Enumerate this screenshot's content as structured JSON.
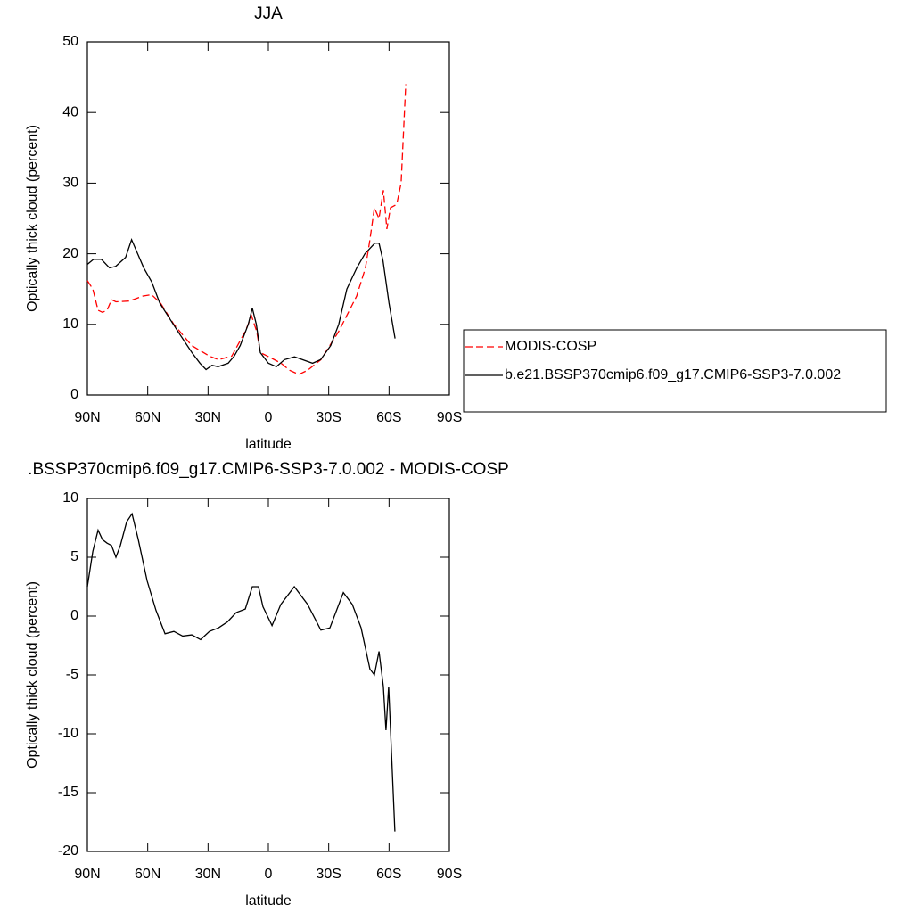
{
  "chart_data": [
    {
      "type": "line",
      "title": "JJA",
      "xlabel": "latitude",
      "ylabel": "Optically thick cloud (percent)",
      "xlim": [
        90,
        -90
      ],
      "ylim": [
        0,
        50
      ],
      "xticks": [
        {
          "value": 90,
          "label": "90N"
        },
        {
          "value": 60,
          "label": "60N"
        },
        {
          "value": 30,
          "label": "30N"
        },
        {
          "value": 0,
          "label": "0"
        },
        {
          "value": -30,
          "label": "30S"
        },
        {
          "value": -60,
          "label": "60S"
        },
        {
          "value": -90,
          "label": "90S"
        }
      ],
      "yticks": [
        0,
        10,
        20,
        30,
        40,
        50
      ],
      "legend": "right",
      "series": [
        {
          "name": "MODIS-COSP",
          "color": "#ff0000",
          "dashed": true,
          "x": [
            90,
            87.3,
            84.7,
            82.5,
            80.2,
            78,
            75.8,
            69.2,
            62.5,
            58.1,
            53.6,
            47,
            38.1,
            29.3,
            24.8,
            18.2,
            11.5,
            8.4,
            5.8,
            4,
            0.4,
            -6.3,
            -10.6,
            -15.1,
            -19.5,
            -26.1,
            -35,
            -43.9,
            -48.3,
            -50.5,
            -52.7,
            -55,
            -57.2,
            -58.9,
            -60.7,
            -63.8,
            -66,
            -68.3
          ],
          "values": [
            16.2,
            15,
            12,
            11.7,
            12,
            13.5,
            13.2,
            13.3,
            14,
            14.2,
            13,
            10,
            7,
            5.5,
            5,
            5.5,
            9,
            11.2,
            9,
            6,
            5.5,
            4.5,
            3.5,
            2.9,
            3.5,
            5,
            9,
            14,
            18,
            22,
            26.5,
            25,
            29,
            23.5,
            26.5,
            27,
            30,
            44
          ]
        },
        {
          "name": "b.e21.BSSP370cmip6.f09_g17.CMIP6-SSP3-7.0.002",
          "color": "#000000",
          "dashed": false,
          "x": [
            90,
            87,
            83,
            79,
            76,
            71,
            68,
            65,
            62,
            58,
            54,
            45,
            38,
            34,
            31,
            28,
            25,
            20,
            17,
            14,
            10,
            8,
            6,
            4,
            0,
            -4,
            -8,
            -13,
            -17,
            -22,
            -26,
            -31,
            -35,
            -39,
            -44,
            -48,
            -53,
            -55,
            -57,
            -60,
            -63
          ],
          "values": [
            18.5,
            19.2,
            19.2,
            18,
            18.2,
            19.5,
            22,
            20,
            18,
            16,
            13,
            9,
            6,
            4.5,
            3.6,
            4.2,
            4,
            4.5,
            5.5,
            7,
            10,
            12.3,
            10,
            6,
            4.5,
            4,
            5,
            5.4,
            5,
            4.5,
            5,
            7,
            10,
            15,
            18,
            20,
            21.5,
            21.5,
            19,
            13,
            8
          ]
        }
      ]
    },
    {
      "type": "line",
      "title": ".BSSP370cmip6.f09_g17.CMIP6-SSP3-7.0.002 - MODIS-COSP",
      "xlabel": "latitude",
      "ylabel": "Optically thick cloud (percent)",
      "xlim": [
        90,
        -90
      ],
      "ylim": [
        -20,
        10
      ],
      "xticks": [
        {
          "value": 90,
          "label": "90N"
        },
        {
          "value": 60,
          "label": "60N"
        },
        {
          "value": 30,
          "label": "30N"
        },
        {
          "value": 0,
          "label": "0"
        },
        {
          "value": -30,
          "label": "30S"
        },
        {
          "value": -60,
          "label": "60S"
        },
        {
          "value": -90,
          "label": "90S"
        }
      ],
      "yticks": [
        -20,
        -15,
        -10,
        -5,
        0,
        5,
        10
      ],
      "series": [
        {
          "color": "#000000",
          "dashed": false,
          "x": [
            90,
            87.3,
            84.7,
            82.5,
            80.2,
            78,
            75.8,
            73.6,
            70.5,
            67.8,
            64.7,
            60.3,
            55.9,
            51.4,
            47,
            42.6,
            38.1,
            33.7,
            29.3,
            24.8,
            20.4,
            16,
            11.5,
            8,
            4.9,
            2.7,
            -1.8,
            -6.2,
            -12.9,
            -19.5,
            -26.1,
            -30.6,
            -37.3,
            -41.7,
            -46.1,
            -50.5,
            -52.7,
            -55,
            -57.2,
            -58.5,
            -59.8,
            -62.9
          ],
          "values": [
            2.5,
            5.5,
            7.3,
            6.5,
            6.2,
            6,
            5,
            6,
            8,
            8.7,
            6.5,
            3,
            0.5,
            -1.5,
            -1.3,
            -1.7,
            -1.6,
            -2,
            -1.3,
            -1,
            -0.5,
            0.3,
            0.6,
            2.5,
            2.5,
            0.8,
            -0.8,
            1,
            2.5,
            1,
            -1.2,
            -1,
            2,
            1,
            -1,
            -4.5,
            -5,
            -3,
            -6,
            -9.7,
            -6,
            -18.3
          ]
        }
      ]
    }
  ]
}
